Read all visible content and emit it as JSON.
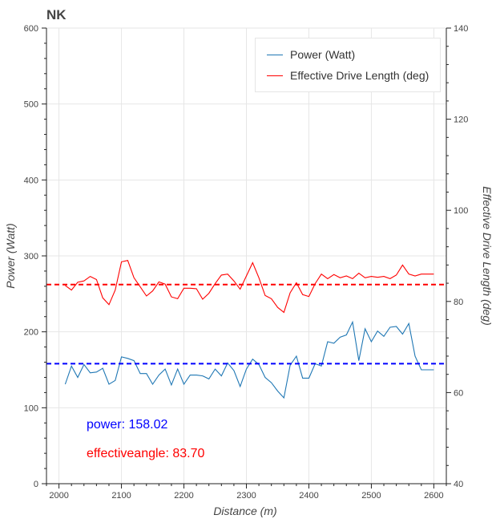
{
  "chart_data": {
    "type": "line",
    "title": "NK",
    "xlabel": "Distance (m)",
    "ylabel": "Power (Watt)",
    "y2label": "Effective Drive Length (deg)",
    "xlim": [
      1980,
      2620
    ],
    "ylim": [
      0,
      600
    ],
    "y2lim": [
      40,
      140
    ],
    "xticks": [
      2000,
      2100,
      2200,
      2300,
      2400,
      2500,
      2600
    ],
    "yticks": [
      0,
      100,
      200,
      300,
      400,
      500,
      600
    ],
    "y2ticks": [
      40,
      60,
      80,
      100,
      120,
      140
    ],
    "grid": true,
    "legend_position": "top-right",
    "colors": {
      "power": "#1f77b4",
      "effective": "#ff0000",
      "power_mean": "#0000ff",
      "effective_mean": "#ff0000"
    },
    "series": [
      {
        "name": "Power (Watt)",
        "axis": "left",
        "x": [
          2010,
          2020,
          2030,
          2040,
          2050,
          2060,
          2070,
          2080,
          2090,
          2100,
          2110,
          2120,
          2130,
          2140,
          2150,
          2160,
          2170,
          2180,
          2190,
          2200,
          2210,
          2220,
          2230,
          2240,
          2250,
          2260,
          2270,
          2280,
          2290,
          2300,
          2310,
          2320,
          2330,
          2340,
          2350,
          2360,
          2370,
          2380,
          2390,
          2400,
          2410,
          2420,
          2430,
          2440,
          2450,
          2460,
          2470,
          2480,
          2490,
          2500,
          2510,
          2520,
          2530,
          2540,
          2550,
          2560,
          2570,
          2580,
          2590,
          2600
        ],
        "values": [
          131,
          155,
          140,
          157,
          146,
          147,
          152,
          131,
          136,
          167,
          165,
          162,
          145,
          145,
          131,
          143,
          151,
          130,
          151,
          131,
          143,
          143,
          142,
          138,
          151,
          142,
          159,
          149,
          128,
          151,
          164,
          157,
          140,
          133,
          122,
          113,
          156,
          168,
          139,
          139,
          158,
          155,
          187,
          185,
          193,
          196,
          213,
          162,
          204,
          187,
          201,
          194,
          206,
          207,
          197,
          211,
          168,
          150,
          150,
          150
        ]
      },
      {
        "name": "Effective Drive Length (deg)",
        "axis": "right",
        "x": [
          2010,
          2020,
          2030,
          2040,
          2050,
          2060,
          2070,
          2080,
          2090,
          2100,
          2110,
          2120,
          2130,
          2140,
          2150,
          2160,
          2170,
          2180,
          2190,
          2200,
          2210,
          2220,
          2230,
          2240,
          2250,
          2260,
          2270,
          2280,
          2290,
          2300,
          2310,
          2320,
          2330,
          2340,
          2350,
          2360,
          2370,
          2380,
          2390,
          2400,
          2410,
          2420,
          2430,
          2440,
          2450,
          2460,
          2470,
          2480,
          2490,
          2500,
          2510,
          2520,
          2530,
          2540,
          2550,
          2560,
          2570,
          2580,
          2590,
          2600
        ],
        "values": [
          83.5,
          82.5,
          84.2,
          84.5,
          85.5,
          84.8,
          80.8,
          79.3,
          82.5,
          88.7,
          89.0,
          85.2,
          83.2,
          81.2,
          82.3,
          84.3,
          83.8,
          81.0,
          80.6,
          82.9,
          82.9,
          82.8,
          80.5,
          81.8,
          83.9,
          85.8,
          86.0,
          84.5,
          82.7,
          85.6,
          88.5,
          85.2,
          81.3,
          80.6,
          78.7,
          77.6,
          81.9,
          84.1,
          81.5,
          81.1,
          83.9,
          86.0,
          85.0,
          85.9,
          85.2,
          85.6,
          85.0,
          86.2,
          85.2,
          85.5,
          85.3,
          85.5,
          85.0,
          85.8,
          88.0,
          86.0,
          85.6,
          86.0,
          86.0,
          86.0
        ]
      }
    ],
    "mean_lines": [
      {
        "name": "power mean",
        "axis": "left",
        "value": 158.02
      },
      {
        "name": "effectiveangle mean",
        "axis": "right",
        "value": 83.7
      }
    ],
    "annotations": [
      {
        "label": "power: ",
        "value": "158.02"
      },
      {
        "label": "effectiveangle: ",
        "value": "83.70"
      }
    ]
  }
}
